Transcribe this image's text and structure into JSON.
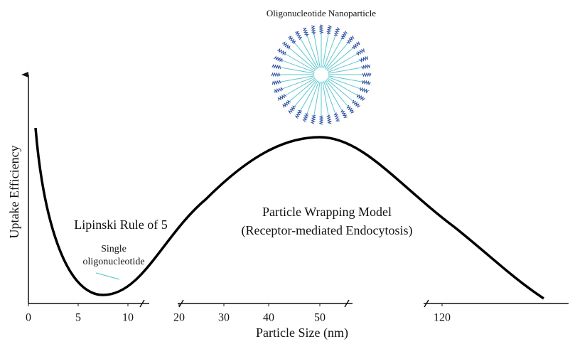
{
  "title": "Oligonucleotide Nanoparticle",
  "x_axis": {
    "label": "Particle Size (nm)",
    "ticks": [
      0,
      5,
      10,
      20,
      30,
      40,
      50,
      120
    ]
  },
  "y_axis": {
    "label": "Uptake Efficiency"
  },
  "annotations": {
    "lipinski": "Lipinski Rule of 5",
    "single": [
      "Single",
      "oligonucleotide"
    ],
    "wrapping": [
      "Particle Wrapping Model",
      "(Receptor-mediated Endocytosis)"
    ]
  }
}
